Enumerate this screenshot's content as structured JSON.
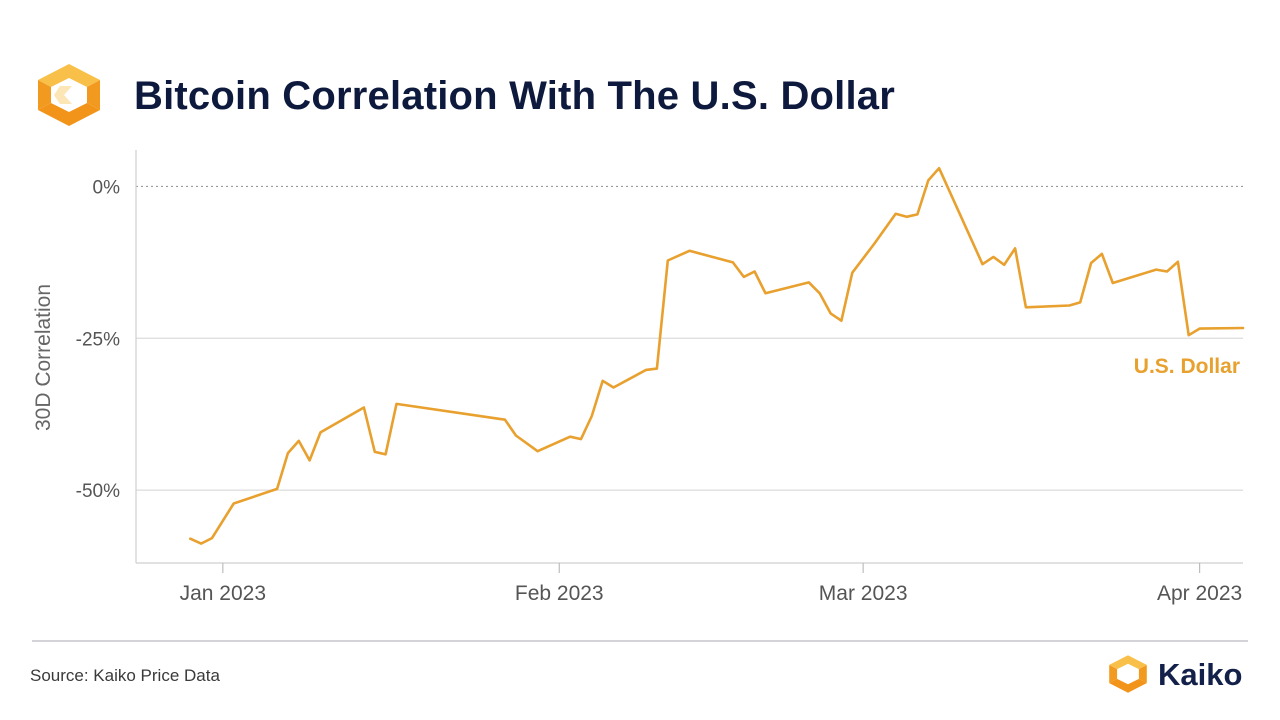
{
  "header": {
    "title": "Bitcoin Correlation With The U.S. Dollar",
    "logo_icon": "kaiko-logo-icon"
  },
  "footer": {
    "source": "Source: Kaiko Price Data",
    "brand_name": "Kaiko",
    "brand_icon": "kaiko-logo-icon"
  },
  "colors": {
    "series": "#e8a02e",
    "title": "#0e1a3d",
    "grid": "#dcdcdc",
    "axis_text": "#555555",
    "logo_orange": "#f29a1f",
    "logo_orange_light": "#f8c048"
  },
  "chart_data": {
    "type": "line",
    "title": "Bitcoin Correlation With The U.S. Dollar",
    "ylabel": "30D Correlation",
    "xlabel": "",
    "ylim": [
      -62,
      6
    ],
    "xlim": [
      "2022-12-24",
      "2023-04-05"
    ],
    "y_ticks": [
      {
        "value": 0,
        "label": "0%"
      },
      {
        "value": -25,
        "label": "-25%"
      },
      {
        "value": -50,
        "label": "-50%"
      }
    ],
    "x_ticks": [
      {
        "date": "2023-01-01",
        "label": "Jan 2023"
      },
      {
        "date": "2023-02-01",
        "label": "Feb 2023"
      },
      {
        "date": "2023-03-01",
        "label": "Mar 2023"
      },
      {
        "date": "2023-04-01",
        "label": "Apr 2023"
      }
    ],
    "reference_line": {
      "value": 0,
      "style": "dotted"
    },
    "grid": {
      "horizontal": true,
      "vertical": false
    },
    "legend": "inline-right",
    "series": [
      {
        "name": "U.S. Dollar",
        "points": [
          [
            "2022-12-29",
            -58.0
          ],
          [
            "2022-12-30",
            -58.8
          ],
          [
            "2022-12-31",
            -57.9
          ],
          [
            "2023-01-02",
            -52.2
          ],
          [
            "2023-01-06",
            -49.8
          ],
          [
            "2023-01-07",
            -43.9
          ],
          [
            "2023-01-08",
            -41.9
          ],
          [
            "2023-01-09",
            -45.1
          ],
          [
            "2023-01-10",
            -40.5
          ],
          [
            "2023-01-14",
            -36.4
          ],
          [
            "2023-01-15",
            -43.7
          ],
          [
            "2023-01-16",
            -44.1
          ],
          [
            "2023-01-17",
            -35.8
          ],
          [
            "2023-01-27",
            -38.4
          ],
          [
            "2023-01-28",
            -41.0
          ],
          [
            "2023-01-30",
            -43.6
          ],
          [
            "2023-02-02",
            -41.2
          ],
          [
            "2023-02-03",
            -41.6
          ],
          [
            "2023-02-04",
            -37.8
          ],
          [
            "2023-02-05",
            -32.0
          ],
          [
            "2023-02-06",
            -33.1
          ],
          [
            "2023-02-09",
            -30.2
          ],
          [
            "2023-02-10",
            -30.0
          ],
          [
            "2023-02-11",
            -12.2
          ],
          [
            "2023-02-13",
            -10.6
          ],
          [
            "2023-02-17",
            -12.5
          ],
          [
            "2023-02-18",
            -14.9
          ],
          [
            "2023-02-19",
            -14.0
          ],
          [
            "2023-02-20",
            -17.6
          ],
          [
            "2023-02-24",
            -15.8
          ],
          [
            "2023-02-25",
            -17.6
          ],
          [
            "2023-02-26",
            -20.9
          ],
          [
            "2023-02-27",
            -22.1
          ],
          [
            "2023-02-28",
            -14.2
          ],
          [
            "2023-03-02",
            -9.5
          ],
          [
            "2023-03-04",
            -4.5
          ],
          [
            "2023-03-05",
            -5.0
          ],
          [
            "2023-03-06",
            -4.6
          ],
          [
            "2023-03-07",
            1.0
          ],
          [
            "2023-03-08",
            3.0
          ],
          [
            "2023-03-12",
            -12.8
          ],
          [
            "2023-03-13",
            -11.6
          ],
          [
            "2023-03-14",
            -12.9
          ],
          [
            "2023-03-15",
            -10.2
          ],
          [
            "2023-03-16",
            -19.9
          ],
          [
            "2023-03-20",
            -19.6
          ],
          [
            "2023-03-21",
            -19.1
          ],
          [
            "2023-03-22",
            -12.6
          ],
          [
            "2023-03-23",
            -11.1
          ],
          [
            "2023-03-24",
            -15.9
          ],
          [
            "2023-03-28",
            -13.7
          ],
          [
            "2023-03-29",
            -14.0
          ],
          [
            "2023-03-30",
            -12.4
          ],
          [
            "2023-03-31",
            -24.5
          ],
          [
            "2023-04-01",
            -23.4
          ],
          [
            "2023-04-05",
            -23.3
          ]
        ]
      }
    ]
  }
}
